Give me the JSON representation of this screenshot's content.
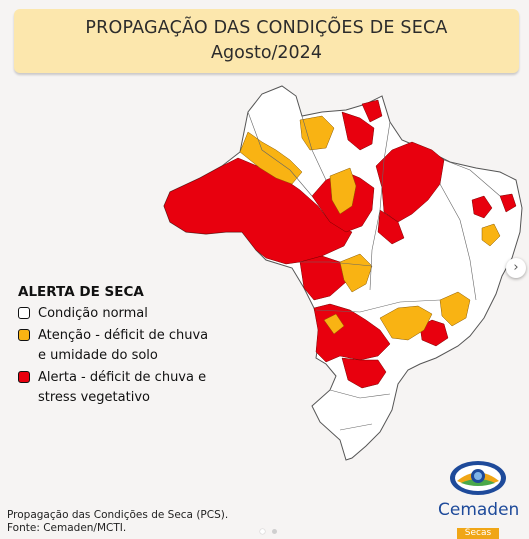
{
  "header": {
    "title": "PROPAGAÇÃO DAS CONDIÇÕES DE SECA",
    "subtitle": "Agosto/2024"
  },
  "legend": {
    "title": "ALERTA DE SECA",
    "items": [
      {
        "label": "Condição normal",
        "color": "#ffffff"
      },
      {
        "label": "Atenção - déficit de chuva\ne umidade do solo",
        "color": "#f9b313"
      },
      {
        "label": "Alerta - déficit de chuva e\nstress vegetativo",
        "color": "#e8000e"
      }
    ]
  },
  "map": {
    "colors": {
      "normal": "#ffffff",
      "attention": "#f9b313",
      "alert": "#e8000e",
      "border": "#666666"
    }
  },
  "footer": {
    "line1": "Propagação das Condições de Seca (PCS).",
    "line2": "Fonte: Cemaden/MCTI."
  },
  "logo": {
    "name": "Cemaden",
    "sub": "Secas"
  },
  "carousel": {
    "next_icon": "chevron-right-icon",
    "dots_count": 2,
    "active_index": 0
  }
}
